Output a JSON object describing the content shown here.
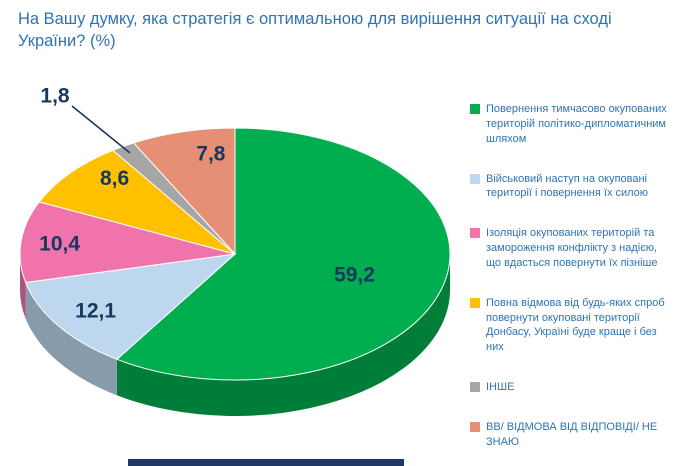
{
  "title": "На Вашу думку, яка стратегія є оптимальною для вирішення ситуації на сході України? (%)",
  "colors": {
    "title_text": "#2E74B5",
    "value_label_text": "#17375E",
    "legend_text": "#2E74B5",
    "background": "#FFFFFF",
    "bottom_strip": "#1F3864"
  },
  "chart_data": {
    "type": "pie",
    "style": "3d",
    "unit": "%",
    "title": "На Вашу думку, яка стратегія є оптимальною для вирішення ситуації на сході України? (%)",
    "legend_position": "right",
    "slices": [
      {
        "label": "Повернення тимчасово окупованих територій політико-дипломатичним шляхом",
        "value": 59.2,
        "value_display": "59,2",
        "color": "#00AE4F"
      },
      {
        "label": "Військовий наступ на окуповані території і повернення їх силою",
        "value": 12.1,
        "value_display": "12,1",
        "color": "#BDD7EE"
      },
      {
        "label": "Ізоляція окупованих територій та замороження конфлікту з надією, що вдасться повернути їх пізніше",
        "value": 10.4,
        "value_display": "10,4",
        "color": "#F173AC"
      },
      {
        "label": "Повна відмова від будь-яких спроб повернути окуповані території Донбасу, Україні буде краще і без них",
        "value": 8.6,
        "value_display": "8,6",
        "color": "#FFC000"
      },
      {
        "label": "ІНШЕ",
        "value": 1.8,
        "value_display": "1,8",
        "color": "#A6A6A6"
      },
      {
        "label": "ВВ/ ВІДМОВА ВІД ВІДПОВІДІ/ НЕ ЗНАЮ",
        "value": 7.8,
        "value_display": "7,8",
        "color": "#E78F75"
      }
    ]
  }
}
